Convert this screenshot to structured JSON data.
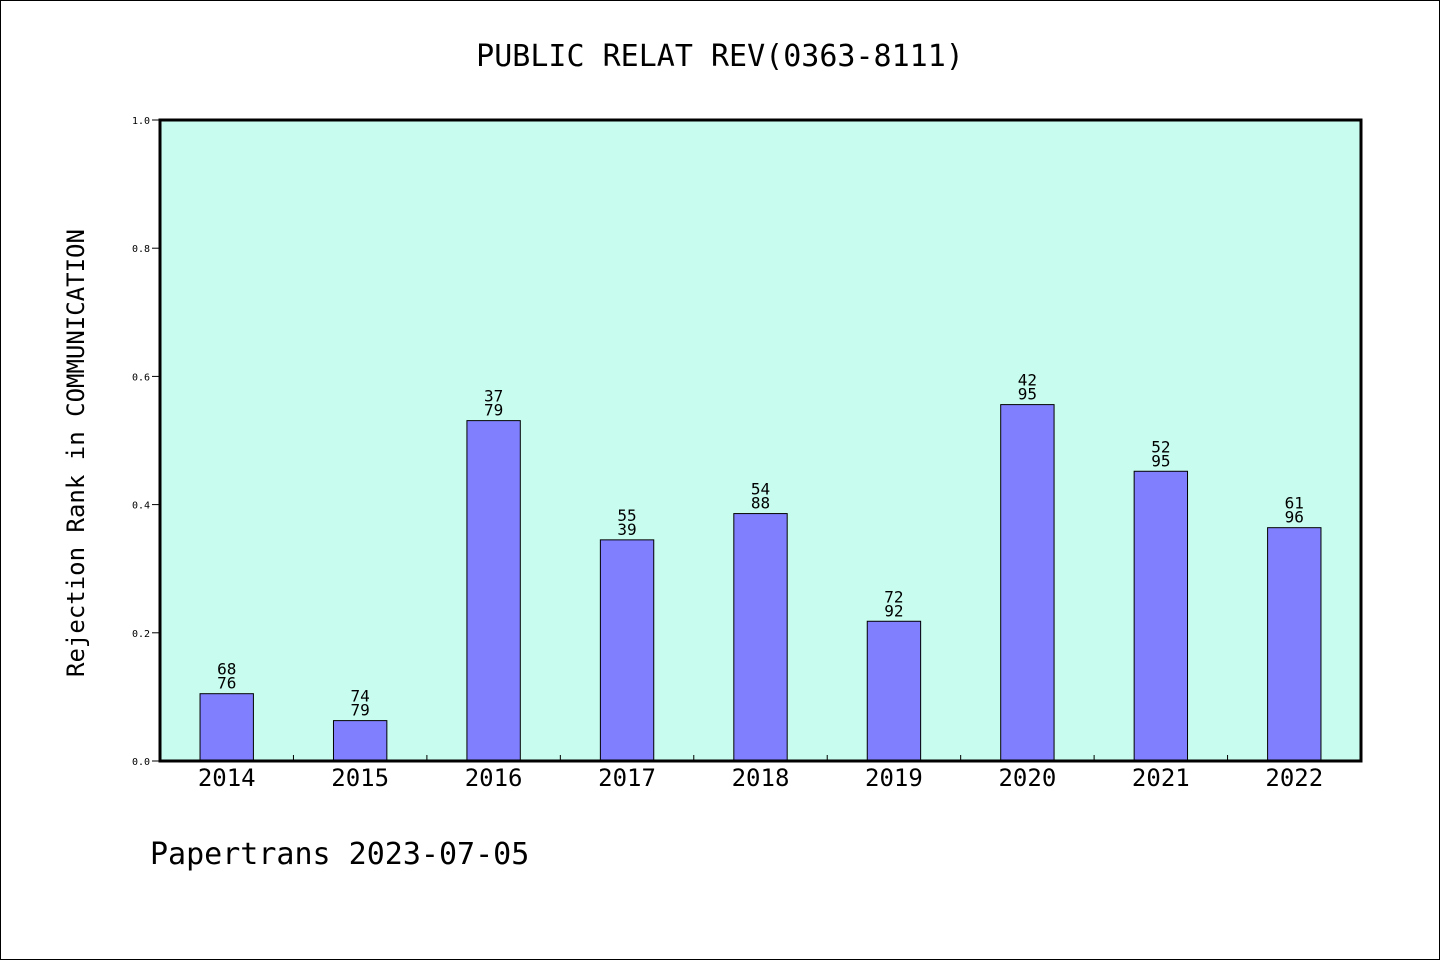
{
  "chart_data": {
    "type": "bar",
    "title": "PUBLIC RELAT REV(0363-8111)",
    "xlabel": "",
    "ylabel": "Rejection Rank in COMMUNICATION",
    "ylim": [
      0,
      1.0
    ],
    "yticks": [
      "0.0",
      "0.2",
      "0.4",
      "0.6",
      "0.8",
      "1.0"
    ],
    "ytick_values": [
      0,
      0.2,
      0.4,
      0.6,
      0.8,
      1.0
    ],
    "categories": [
      "2014",
      "2015",
      "2016",
      "2017",
      "2018",
      "2019",
      "2020",
      "2021",
      "2022"
    ],
    "values": [
      0.105,
      0.063,
      0.531,
      0.345,
      0.386,
      0.218,
      0.556,
      0.452,
      0.364
    ],
    "label_top": [
      "68",
      "74",
      "37",
      "55",
      "54",
      "72",
      "42",
      "52",
      "61"
    ],
    "label_bottom": [
      "76",
      "79",
      "79",
      "39",
      "88",
      "92",
      "95",
      "95",
      "96"
    ],
    "grid": false,
    "legend": "none",
    "colors": {
      "plot_background": "#c8fcee",
      "bar": "#8080ff",
      "axis": "#000000"
    }
  },
  "footer": {
    "credit": "Papertrans 2023-07-05"
  }
}
